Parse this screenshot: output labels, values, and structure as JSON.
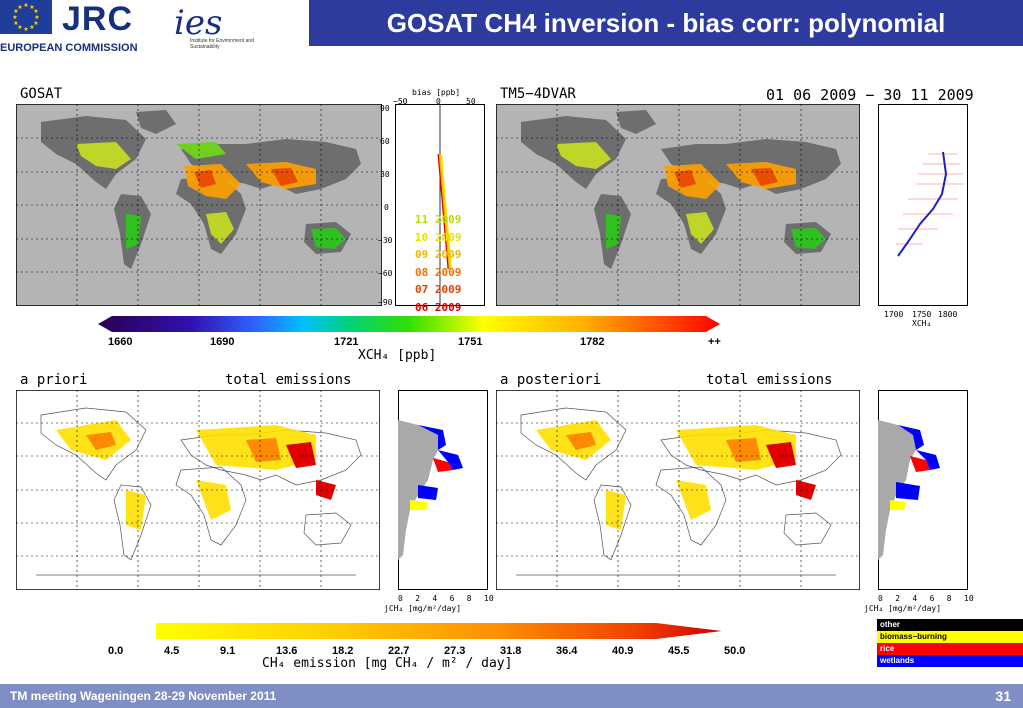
{
  "header": {
    "title": "GOSAT CH4 inversion - bias corr: polynomial",
    "logo_jrc": "JRC",
    "logo_ec": "EUROPEAN COMMISSION",
    "logo_ies": "ies",
    "logo_ies_sub": "Institute for Environment and Sustainability"
  },
  "top_panels": {
    "left_label": "GOSAT",
    "right_label": "TM5−4DVAR",
    "date_range": "01 06 2009 − 30 11 2009",
    "lat_ticks": [
      "90",
      "60",
      "30",
      "0",
      "−30",
      "−60",
      "−90"
    ],
    "bias": {
      "title": "bias [ppb]",
      "ticks": [
        "−50",
        "0",
        "50"
      ],
      "months": [
        {
          "label": "11 2009",
          "color": "#b7e000"
        },
        {
          "label": "10 2009",
          "color": "#e8e000"
        },
        {
          "label": "09 2009",
          "color": "#f0b800"
        },
        {
          "label": "08 2009",
          "color": "#f07000"
        },
        {
          "label": "07 2009",
          "color": "#e84000"
        },
        {
          "label": "06 2009",
          "color": "#e00000"
        }
      ]
    },
    "profile_ticks": [
      "1700",
      "1750",
      "1800"
    ],
    "profile_xlabel": "XCH₄"
  },
  "top_colorbar": {
    "ticks": [
      "1660",
      "1690",
      "1721",
      "1751",
      "1782",
      "++"
    ],
    "title": "XCH₄ [ppb]"
  },
  "bottom_panels": {
    "left_label": "a priori",
    "left_sub": "total emissions",
    "right_label": "a posteriori",
    "right_sub": "total emissions",
    "profile_ticks": [
      "0",
      "2",
      "4",
      "6",
      "8",
      "10"
    ],
    "profile_xlabel": "jCH₄ [mg/m²/day]"
  },
  "bottom_colorbar": {
    "ticks": [
      "0.0",
      "4.5",
      "9.1",
      "13.6",
      "18.2",
      "22.7",
      "27.3",
      "31.8",
      "36.4",
      "40.9",
      "45.5",
      "50.0"
    ],
    "title": "CH₄ emission [mg CH₄ / m² / day]"
  },
  "legend": [
    {
      "label": "other",
      "color": "#a9a9a9"
    },
    {
      "label": "biomass−burning",
      "color": "#ffff00"
    },
    {
      "label": "rice",
      "color": "#ff0000"
    },
    {
      "label": "wetlands",
      "color": "#0000ff"
    }
  ],
  "footer": {
    "text": "TM meeting Wageningen 28-29 November 2011",
    "page": "31"
  }
}
